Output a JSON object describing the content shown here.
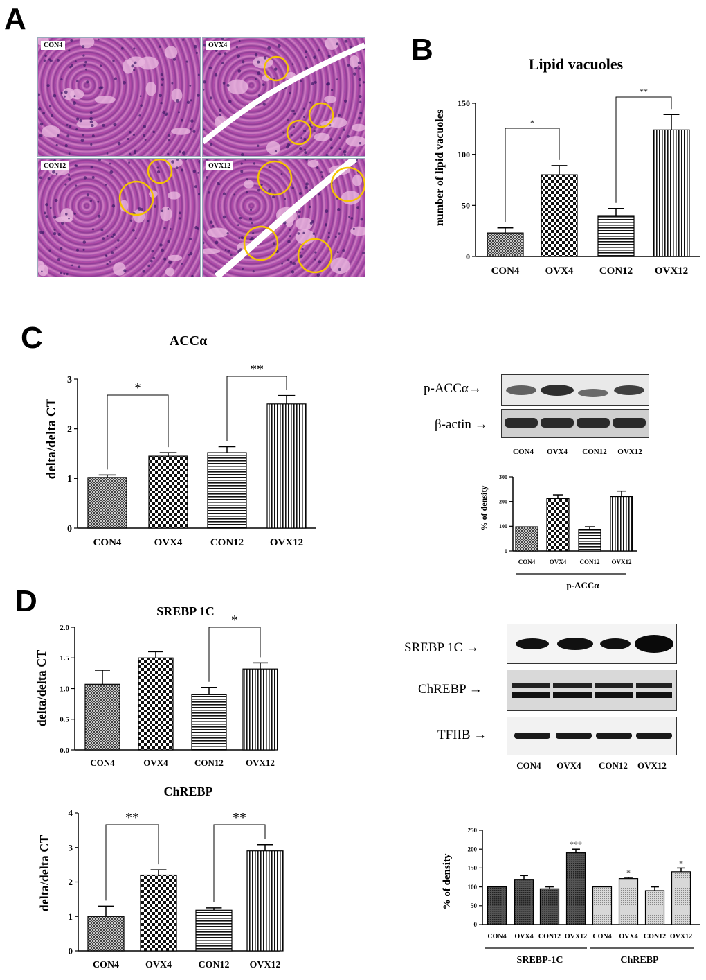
{
  "panels": {
    "a": "A",
    "b": "B",
    "c": "C",
    "d": "D"
  },
  "histology": {
    "labels": [
      "CON4",
      "OVX4",
      "CON12",
      "OVX12"
    ],
    "circle_color": "#f5c400",
    "tissue_color": "#c55fb4"
  },
  "blot_c": {
    "rows": [
      "p-ACCα→",
      "β-actin →"
    ],
    "lanes": [
      "CON4",
      "OVX4",
      "CON12",
      "OVX12"
    ]
  },
  "blot_d": {
    "rows": [
      "SREBP 1C →",
      "ChREBP →",
      "TFIIB →"
    ],
    "lanes": [
      "CON4",
      "OVX4",
      "CON12",
      "OVX12"
    ]
  },
  "chart_data": [
    {
      "id": "lipid",
      "type": "bar",
      "title": "Lipid vacuoles",
      "ylabel": "number of lipid vacuoles",
      "xlabel": "",
      "categories": [
        "CON4",
        "OVX4",
        "CON12",
        "OVX12"
      ],
      "values": [
        23,
        80,
        40,
        124
      ],
      "errors": [
        5,
        9,
        7,
        15
      ],
      "ylim": [
        0,
        150
      ],
      "yticks": [
        0,
        50,
        100,
        150
      ],
      "patterns": [
        "fine",
        "check",
        "hstripe",
        "vstripe"
      ],
      "sig": [
        {
          "from": 0,
          "to": 1,
          "label": "*"
        },
        {
          "from": 2,
          "to": 3,
          "label": "**"
        }
      ]
    },
    {
      "id": "acc",
      "type": "bar",
      "title": "ACCα",
      "ylabel": "delta/delta CT",
      "xlabel": "",
      "categories": [
        "CON4",
        "OVX4",
        "CON12",
        "OVX12"
      ],
      "values": [
        1.02,
        1.45,
        1.52,
        2.5
      ],
      "errors": [
        0.05,
        0.07,
        0.12,
        0.17
      ],
      "ylim": [
        0,
        3
      ],
      "yticks": [
        0,
        1,
        2,
        3
      ],
      "patterns": [
        "fine",
        "check",
        "hstripe",
        "vstripe"
      ],
      "sig": [
        {
          "from": 0,
          "to": 1,
          "label": "*"
        },
        {
          "from": 2,
          "to": 3,
          "label": "**"
        }
      ]
    },
    {
      "id": "pacc",
      "type": "bar",
      "title": "",
      "ylabel": "% of density",
      "xlabel": "p-ACCα",
      "categories": [
        "CON4",
        "OVX4",
        "CON12",
        "OVX12"
      ],
      "values": [
        98,
        212,
        88,
        220
      ],
      "errors": [
        0,
        15,
        10,
        22
      ],
      "ylim": [
        0,
        300
      ],
      "yticks": [
        0,
        100,
        200,
        300
      ],
      "patterns": [
        "fine",
        "check",
        "hstripe",
        "vstripe"
      ],
      "sig": []
    },
    {
      "id": "srebp",
      "type": "bar",
      "title": "SREBP 1C",
      "ylabel": "delta/delta CT",
      "xlabel": "",
      "categories": [
        "CON4",
        "OVX4",
        "CON12",
        "OVX12"
      ],
      "values": [
        1.07,
        1.5,
        0.9,
        1.32
      ],
      "errors": [
        0.23,
        0.1,
        0.12,
        0.1
      ],
      "ylim": [
        0,
        2
      ],
      "yticks": [
        "0.0",
        "0.5",
        "1.0",
        "1.5",
        "2.0"
      ],
      "patterns": [
        "fine",
        "check",
        "hstripe",
        "vstripe"
      ],
      "sig": [
        {
          "from": 2,
          "to": 3,
          "label": "*"
        }
      ]
    },
    {
      "id": "chrebp",
      "type": "bar",
      "title": "ChREBP",
      "ylabel": "delta/delta CT",
      "xlabel": "",
      "categories": [
        "CON4",
        "OVX4",
        "CON12",
        "OVX12"
      ],
      "values": [
        1.0,
        2.2,
        1.18,
        2.9
      ],
      "errors": [
        0.3,
        0.15,
        0.07,
        0.18
      ],
      "ylim": [
        0,
        4
      ],
      "yticks": [
        0,
        1,
        2,
        3,
        4
      ],
      "patterns": [
        "fine",
        "check",
        "hstripe",
        "vstripe"
      ],
      "sig": [
        {
          "from": 0,
          "to": 1,
          "label": "**"
        },
        {
          "from": 2,
          "to": 3,
          "label": "**"
        }
      ]
    },
    {
      "id": "density_d",
      "type": "bar",
      "title": "",
      "ylabel": "% of density",
      "xlabel": "",
      "categories": [
        "CON4",
        "OVX4",
        "CON12",
        "OVX12",
        "CON4",
        "OVX4",
        "CON12",
        "OVX12"
      ],
      "groups": [
        "SREBP-1C",
        "ChREBP"
      ],
      "values": [
        100,
        120,
        95,
        190,
        100,
        122,
        90,
        140
      ],
      "errors": [
        0,
        10,
        5,
        10,
        0,
        3,
        10,
        10
      ],
      "ylim": [
        0,
        250
      ],
      "yticks": [
        0,
        50,
        100,
        150,
        200,
        250
      ],
      "patterns": [
        "dark",
        "dark",
        "dark",
        "dark",
        "light",
        "light",
        "light",
        "light"
      ],
      "bar_labels": [
        "",
        "",
        "",
        "***",
        "",
        "*",
        "",
        "*"
      ],
      "sig": []
    }
  ]
}
